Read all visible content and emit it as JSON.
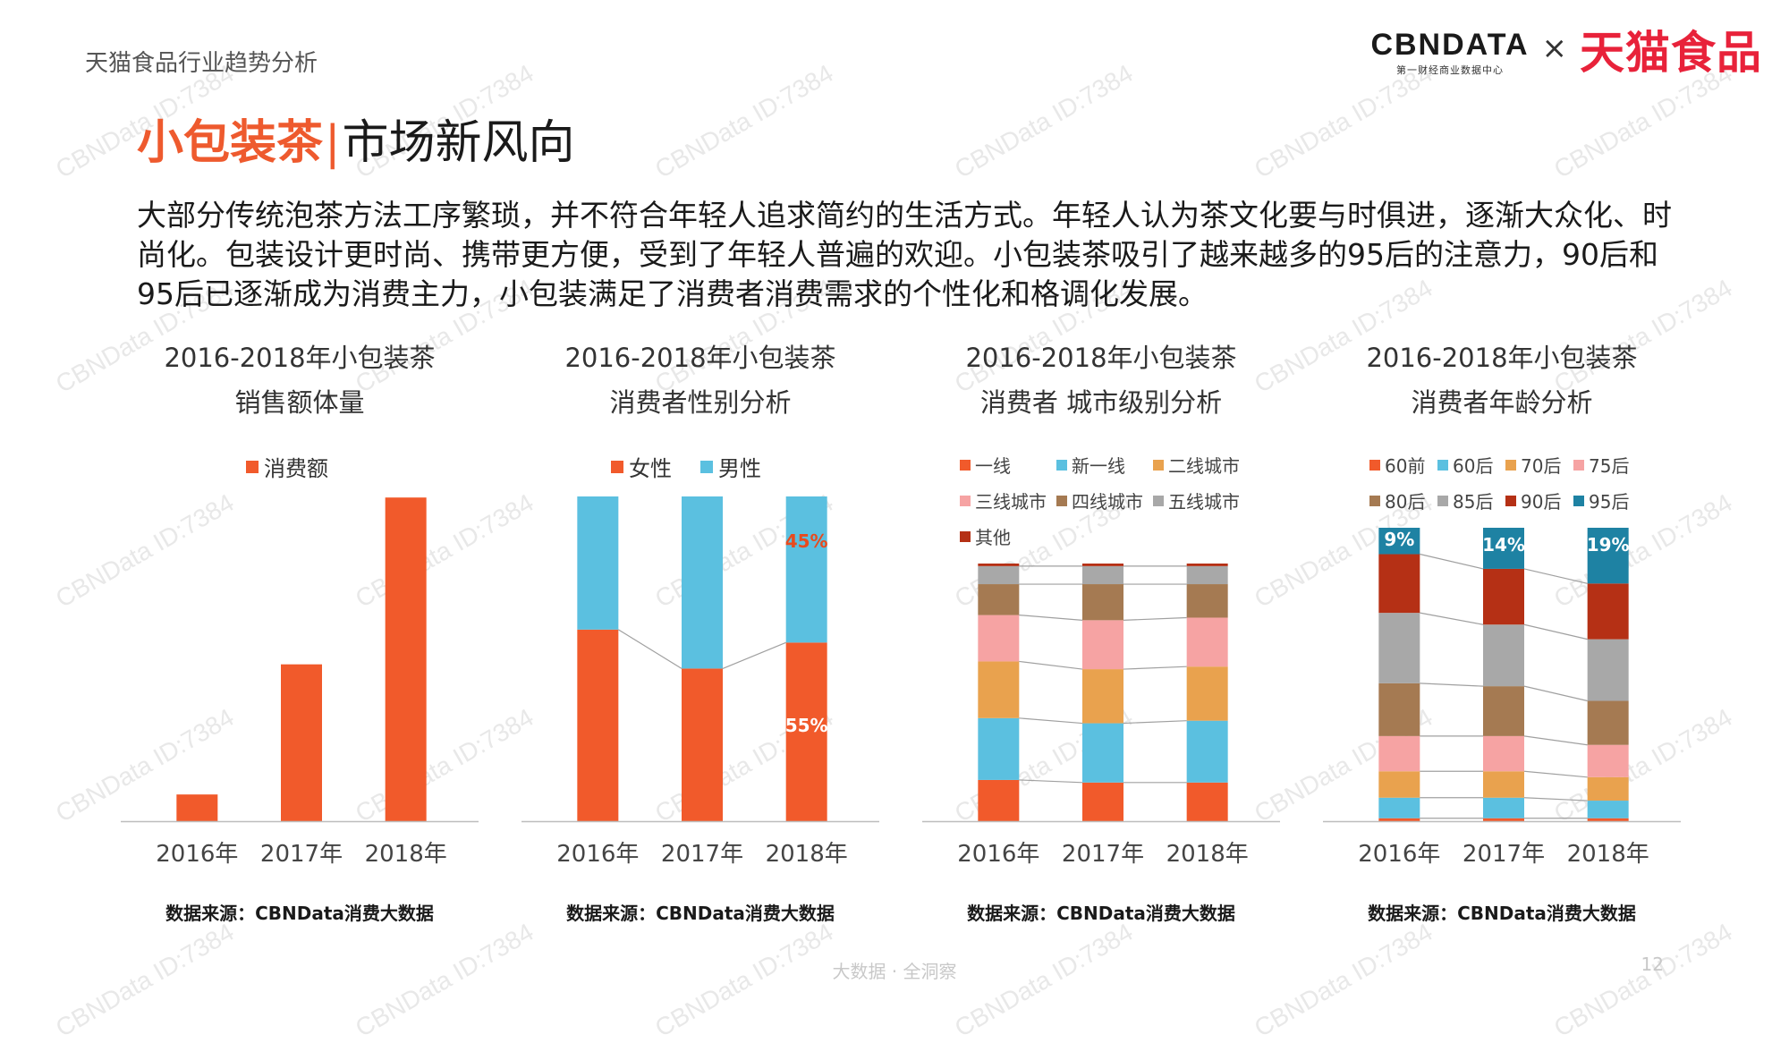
{
  "header": {
    "report_title": "天猫食品行业趋势分析",
    "logo_cbn": "CBNDATA",
    "logo_cbn_sub": "第一财经商业数据中心",
    "logo_times": "×",
    "logo_tmall": "天猫食品"
  },
  "headline": {
    "accent": "小包装茶",
    "bar": "|",
    "rest": "市场新风向"
  },
  "intro": "大部分传统泡茶方法工序繁琐，并不符合年轻人追求简约的生活方式。年轻人认为茶文化要与时俱进，逐渐大众化、时尚化。包装设计更时尚、携带更方便，受到了年轻人普遍的欢迎。小包装茶吸引了越来越多的95后的注意力，90后和95后已逐渐成为消费主力，小包装满足了消费者消费需求的个性化和格调化发展。",
  "watermark": "CBNData ID:7384",
  "footer": {
    "slogan": "大数据 · 全洞察",
    "page": "12"
  },
  "colors": {
    "orange": "#f15a2b",
    "blue": "#5bc0e0",
    "light_orange": "#e9a24e",
    "pink": "#f6a3a3",
    "brown": "#a57a52",
    "gray": "#a8a8a8",
    "dark_red": "#b53015",
    "teal": "#1e82a3"
  },
  "chart_data": [
    {
      "type": "bar",
      "title_line1": "2016-2018年小包装茶",
      "title_line2": "销售额体量",
      "categories": [
        "2016年",
        "2017年",
        "2018年"
      ],
      "series": [
        {
          "name": "消费额",
          "color": "#f15a2b",
          "values": [
            8,
            47,
            97
          ]
        }
      ],
      "ylim": [
        0,
        100
      ],
      "legend": "top",
      "source": "数据来源：CBNData消费大数据"
    },
    {
      "type": "bar",
      "stacked": "percent",
      "title_line1": "2016-2018年小包装茶",
      "title_line2": "消费者性别分析",
      "categories": [
        "2016年",
        "2017年",
        "2018年"
      ],
      "series": [
        {
          "name": "女性",
          "color": "#f15a2b",
          "values": [
            59,
            47,
            55
          ]
        },
        {
          "name": "男性",
          "color": "#5bc0e0",
          "values": [
            41,
            53,
            45
          ]
        }
      ],
      "data_labels": [
        {
          "series": 0,
          "index": 2,
          "text": "55%"
        },
        {
          "series": 1,
          "index": 2,
          "text": "45%"
        }
      ],
      "ylim": [
        0,
        100
      ],
      "legend": "top",
      "source": "数据来源：CBNData消费大数据"
    },
    {
      "type": "bar",
      "stacked": "percent",
      "title_line1": "2016-2018年小包装茶",
      "title_line2": "消费者 城市级别分析",
      "categories": [
        "2016年",
        "2017年",
        "2018年"
      ],
      "series": [
        {
          "name": "一线",
          "color": "#f15a2b",
          "values": [
            16,
            15,
            15
          ]
        },
        {
          "name": "新一线",
          "color": "#5bc0e0",
          "values": [
            24,
            23,
            24
          ]
        },
        {
          "name": "二线城市",
          "color": "#e9a24e",
          "values": [
            22,
            21,
            21
          ]
        },
        {
          "name": "三线城市",
          "color": "#f6a3a3",
          "values": [
            18,
            19,
            19
          ]
        },
        {
          "name": "四线城市",
          "color": "#a57a52",
          "values": [
            12,
            14,
            13
          ]
        },
        {
          "name": "五线城市",
          "color": "#a8a8a8",
          "values": [
            7,
            7,
            7
          ]
        },
        {
          "name": "其他",
          "color": "#b53015",
          "values": [
            1,
            1,
            1
          ]
        }
      ],
      "ylim": [
        0,
        100
      ],
      "legend": "top",
      "source": "数据来源：CBNData消费大数据"
    },
    {
      "type": "bar",
      "stacked": "percent",
      "title_line1": "2016-2018年小包装茶",
      "title_line2": "消费者年龄分析",
      "categories": [
        "2016年",
        "2017年",
        "2018年"
      ],
      "series": [
        {
          "name": "60前",
          "color": "#f15a2b",
          "values": [
            1,
            1,
            1
          ]
        },
        {
          "name": "60后",
          "color": "#5bc0e0",
          "values": [
            7,
            7,
            6
          ]
        },
        {
          "name": "70后",
          "color": "#e9a24e",
          "values": [
            9,
            9,
            8
          ]
        },
        {
          "name": "75后",
          "color": "#f6a3a3",
          "values": [
            12,
            12,
            11
          ]
        },
        {
          "name": "80后",
          "color": "#a57a52",
          "values": [
            18,
            17,
            15
          ]
        },
        {
          "name": "85后",
          "color": "#a8a8a8",
          "values": [
            24,
            21,
            21
          ]
        },
        {
          "name": "90后",
          "color": "#b53015",
          "values": [
            20,
            19,
            19
          ]
        },
        {
          "name": "95后",
          "color": "#1e82a3",
          "values": [
            9,
            14,
            19
          ]
        }
      ],
      "data_labels": [
        {
          "series": 7,
          "index": 0,
          "text": "9%"
        },
        {
          "series": 7,
          "index": 1,
          "text": "14%"
        },
        {
          "series": 7,
          "index": 2,
          "text": "19%"
        }
      ],
      "ylim": [
        0,
        100
      ],
      "legend": "top",
      "source": "数据来源：CBNData消费大数据"
    }
  ]
}
